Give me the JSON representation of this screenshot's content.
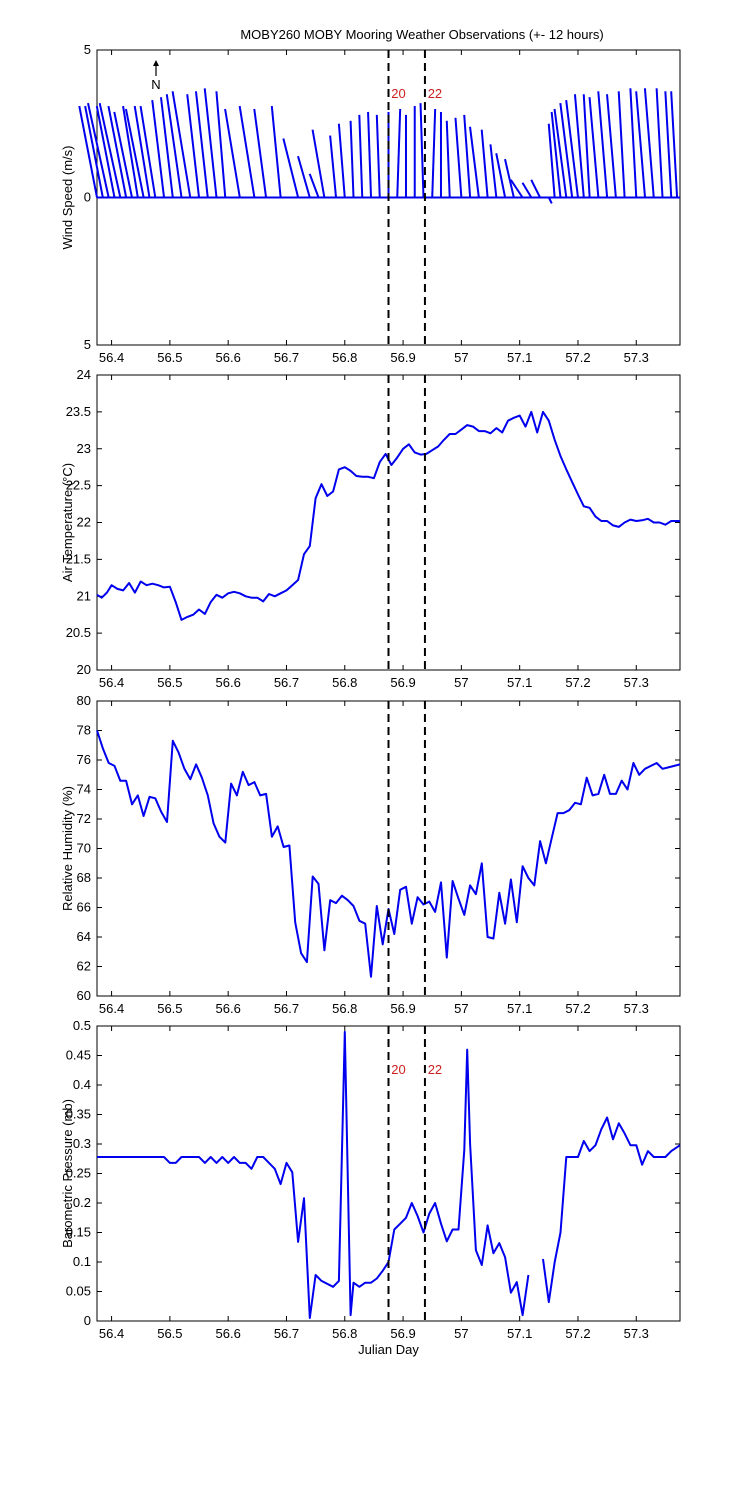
{
  "title": "MOBY260 MOBY Mooring Weather Observations (+- 12 hours)",
  "colors": {
    "line": "#0000ee",
    "marker_text": "#cc1f1f",
    "axes": "#000000"
  },
  "chart_data": [
    {
      "type": "line",
      "variant": "wind-vector-stick",
      "ylabel": "Wind Speed (m/s)",
      "xlim": [
        56.375,
        57.375
      ],
      "ylim": [
        -5,
        5
      ],
      "yticks": [
        "5",
        "0",
        "5"
      ],
      "xticks": [
        "56.4",
        "56.5",
        "56.6",
        "56.7",
        "56.8",
        "56.9",
        "57",
        "57.1",
        "57.2",
        "57.3"
      ],
      "north_label": "N",
      "markers": [
        {
          "x": 56.875,
          "label": "20"
        },
        {
          "x": 56.9375,
          "label": "22"
        }
      ],
      "x": [
        56.375,
        56.385,
        56.395,
        56.405,
        56.415,
        56.425,
        56.435,
        56.445,
        56.455,
        56.465,
        56.475,
        56.49,
        56.505,
        56.52,
        56.535,
        56.55,
        56.565,
        56.58,
        56.595,
        56.62,
        56.645,
        56.665,
        56.69,
        56.72,
        56.74,
        56.755,
        56.765,
        56.785,
        56.8,
        56.815,
        56.83,
        56.845,
        56.86,
        56.875,
        56.89,
        56.905,
        56.92,
        56.935,
        56.95,
        56.965,
        56.98,
        57.0,
        57.015,
        57.03,
        57.045,
        57.06,
        57.075,
        57.09,
        57.105,
        57.12,
        57.135,
        57.15,
        57.16,
        57.17,
        57.18,
        57.19,
        57.2,
        57.21,
        57.22,
        57.235,
        57.25,
        57.265,
        57.28,
        57.3,
        57.315,
        57.33,
        57.345,
        57.36,
        57.37
      ],
      "u": [
        -0.6,
        -0.6,
        -0.7,
        -0.6,
        -0.7,
        -0.6,
        -0.6,
        -0.5,
        -0.6,
        -0.5,
        -0.5,
        -0.4,
        -0.4,
        -0.5,
        -0.6,
        -0.4,
        -0.4,
        -0.4,
        -0.3,
        -0.5,
        -0.5,
        -0.4,
        -0.3,
        -0.5,
        -0.4,
        -0.3,
        -0.4,
        -0.2,
        -0.2,
        -0.1,
        -0.1,
        -0.1,
        -0.1,
        0.0,
        0.1,
        0.0,
        0.0,
        -0.1,
        0.1,
        0.0,
        -0.1,
        -0.2,
        -0.2,
        -0.3,
        -0.2,
        -0.2,
        -0.3,
        -0.3,
        -0.4,
        -0.3,
        -0.3,
        0.1,
        -0.2,
        -0.3,
        -0.4,
        -0.4,
        -0.4,
        -0.3,
        -0.2,
        -0.3,
        -0.3,
        -0.3,
        -0.2,
        -0.2,
        -0.3,
        -0.3,
        -0.2,
        -0.2,
        -0.2
      ],
      "v": [
        3.1,
        3.1,
        3.2,
        3.1,
        3.2,
        3.1,
        2.9,
        3.1,
        3.0,
        3.1,
        3.1,
        3.3,
        3.4,
        3.5,
        3.6,
        3.5,
        3.6,
        3.7,
        3.6,
        3.0,
        3.1,
        3.0,
        3.1,
        2.0,
        1.4,
        0.8,
        2.3,
        2.1,
        2.5,
        2.6,
        2.8,
        2.9,
        2.8,
        2.9,
        3.0,
        2.8,
        3.1,
        3.2,
        3.0,
        2.9,
        2.6,
        2.7,
        2.8,
        2.4,
        2.3,
        1.8,
        1.5,
        1.3,
        0.6,
        0.5,
        0.6,
        -0.2,
        2.5,
        2.9,
        3.0,
        3.2,
        3.3,
        3.5,
        3.5,
        3.4,
        3.6,
        3.5,
        3.6,
        3.7,
        3.6,
        3.7,
        3.7,
        3.6,
        3.6
      ]
    },
    {
      "type": "line",
      "ylabel": "Air Temperature (°C)",
      "xlim": [
        56.375,
        57.375
      ],
      "ylim": [
        20,
        24
      ],
      "yticks": [
        "20",
        "20.5",
        "21",
        "21.5",
        "22",
        "22.5",
        "23",
        "23.5",
        "24"
      ],
      "xticks": [
        "56.4",
        "56.5",
        "56.6",
        "56.7",
        "56.8",
        "56.9",
        "57",
        "57.1",
        "57.2",
        "57.3"
      ],
      "markers": [
        {
          "x": 56.875,
          "label": ""
        },
        {
          "x": 56.9375,
          "label": ""
        }
      ],
      "x": [
        56.375,
        56.383,
        56.392,
        56.4,
        56.41,
        56.42,
        56.43,
        56.44,
        56.45,
        56.46,
        56.47,
        56.48,
        56.49,
        56.5,
        56.51,
        56.52,
        56.53,
        56.54,
        56.55,
        56.56,
        56.57,
        56.58,
        56.59,
        56.6,
        56.61,
        56.62,
        56.63,
        56.64,
        56.65,
        56.66,
        56.67,
        56.68,
        56.69,
        56.7,
        56.71,
        56.72,
        56.73,
        56.74,
        56.75,
        56.76,
        56.77,
        56.78,
        56.79,
        56.8,
        56.81,
        56.82,
        56.83,
        56.84,
        56.85,
        56.86,
        56.87,
        56.88,
        56.89,
        56.9,
        56.91,
        56.92,
        56.93,
        56.94,
        56.95,
        56.96,
        56.97,
        56.98,
        56.99,
        57.0,
        57.01,
        57.02,
        57.03,
        57.04,
        57.05,
        57.06,
        57.07,
        57.08,
        57.09,
        57.1,
        57.11,
        57.12,
        57.13,
        57.14,
        57.15,
        57.16,
        57.17,
        57.18,
        57.19,
        57.2,
        57.21,
        57.22,
        57.23,
        57.24,
        57.25,
        57.26,
        57.27,
        57.28,
        57.29,
        57.3,
        57.31,
        57.32,
        57.33,
        57.34,
        57.35,
        57.36,
        57.375
      ],
      "y": [
        21.02,
        20.98,
        21.05,
        21.15,
        21.1,
        21.08,
        21.18,
        21.05,
        21.2,
        21.15,
        21.17,
        21.15,
        21.12,
        21.13,
        20.92,
        20.68,
        20.72,
        20.75,
        20.82,
        20.76,
        20.92,
        21.02,
        20.98,
        21.04,
        21.06,
        21.04,
        21.0,
        20.98,
        20.98,
        20.93,
        21.03,
        21.0,
        21.04,
        21.08,
        21.15,
        21.22,
        21.57,
        21.68,
        22.33,
        22.52,
        22.36,
        22.42,
        22.72,
        22.75,
        22.7,
        22.63,
        22.62,
        22.62,
        22.6,
        22.82,
        22.93,
        22.78,
        22.88,
        23.0,
        23.06,
        22.95,
        22.92,
        22.93,
        22.98,
        23.03,
        23.12,
        23.2,
        23.2,
        23.26,
        23.32,
        23.3,
        23.24,
        23.24,
        23.21,
        23.28,
        23.22,
        23.38,
        23.42,
        23.45,
        23.3,
        23.5,
        23.22,
        23.5,
        23.38,
        23.12,
        22.9,
        22.72,
        22.55,
        22.38,
        22.22,
        22.2,
        22.08,
        22.02,
        22.02,
        21.96,
        21.94,
        22.0,
        22.04,
        22.02,
        22.03,
        22.05,
        22.0,
        22.0,
        21.97,
        22.02,
        22.02
      ]
    },
    {
      "type": "line",
      "ylabel": "Relative Humidity (%)",
      "xlim": [
        56.375,
        57.375
      ],
      "ylim": [
        60,
        80
      ],
      "yticks": [
        "60",
        "62",
        "64",
        "66",
        "68",
        "70",
        "72",
        "74",
        "76",
        "78",
        "80"
      ],
      "xticks": [
        "56.4",
        "56.5",
        "56.6",
        "56.7",
        "56.8",
        "56.9",
        "57",
        "57.1",
        "57.2",
        "57.3"
      ],
      "markers": [
        {
          "x": 56.875,
          "label": ""
        },
        {
          "x": 56.9375,
          "label": ""
        }
      ],
      "x": [
        56.375,
        56.385,
        56.395,
        56.405,
        56.415,
        56.425,
        56.435,
        56.445,
        56.455,
        56.465,
        56.475,
        56.485,
        56.495,
        56.505,
        56.515,
        56.525,
        56.535,
        56.545,
        56.555,
        56.565,
        56.575,
        56.585,
        56.595,
        56.605,
        56.615,
        56.625,
        56.635,
        56.645,
        56.655,
        56.665,
        56.675,
        56.685,
        56.695,
        56.705,
        56.715,
        56.725,
        56.735,
        56.745,
        56.755,
        56.765,
        56.775,
        56.785,
        56.795,
        56.805,
        56.815,
        56.825,
        56.835,
        56.845,
        56.855,
        56.865,
        56.875,
        56.885,
        56.895,
        56.905,
        56.915,
        56.925,
        56.935,
        56.945,
        56.955,
        56.965,
        56.975,
        56.985,
        56.995,
        57.005,
        57.015,
        57.025,
        57.035,
        57.045,
        57.055,
        57.065,
        57.075,
        57.085,
        57.095,
        57.105,
        57.115,
        57.125,
        57.135,
        57.145,
        57.155,
        57.165,
        57.175,
        57.185,
        57.195,
        57.205,
        57.215,
        57.225,
        57.235,
        57.245,
        57.255,
        57.265,
        57.275,
        57.285,
        57.295,
        57.305,
        57.315,
        57.325,
        57.335,
        57.345,
        57.355,
        57.365,
        57.375
      ],
      "y": [
        78.0,
        76.8,
        75.8,
        75.6,
        74.6,
        74.6,
        73.0,
        73.6,
        72.2,
        73.5,
        73.4,
        72.5,
        71.8,
        77.3,
        76.5,
        75.4,
        74.7,
        75.7,
        74.8,
        73.6,
        71.7,
        70.8,
        70.4,
        74.4,
        73.6,
        75.2,
        74.3,
        74.5,
        73.6,
        73.7,
        70.8,
        71.5,
        70.1,
        70.2,
        65.0,
        62.9,
        62.3,
        68.1,
        67.6,
        63.1,
        66.5,
        66.3,
        66.8,
        66.5,
        66.1,
        65.1,
        64.9,
        61.3,
        66.1,
        63.5,
        65.9,
        64.2,
        67.2,
        67.4,
        64.9,
        66.7,
        66.2,
        66.4,
        65.7,
        67.7,
        62.6,
        67.8,
        66.6,
        65.5,
        67.5,
        66.9,
        69.0,
        64.0,
        63.9,
        67.0,
        64.9,
        67.9,
        65.0,
        68.8,
        68.0,
        67.5,
        70.5,
        69.0,
        70.7,
        72.4,
        72.4,
        72.6,
        73.1,
        73.0,
        74.8,
        73.6,
        73.7,
        75.0,
        73.7,
        73.7,
        74.6,
        74.0,
        75.8,
        75.0,
        75.4,
        75.6,
        75.8,
        75.4,
        75.5,
        75.6,
        75.7
      ]
    },
    {
      "type": "line",
      "ylabel": "Barometric Pressure (mb)",
      "xlabel": "Julian Day",
      "xlim": [
        56.375,
        57.375
      ],
      "ylim": [
        0,
        0.5
      ],
      "yticks": [
        "0",
        "0.05",
        "0.1",
        "0.15",
        "0.2",
        "0.25",
        "0.3",
        "0.35",
        "0.4",
        "0.45",
        "0.5"
      ],
      "xticks": [
        "56.4",
        "56.5",
        "56.6",
        "56.7",
        "56.8",
        "56.9",
        "57",
        "57.1",
        "57.2",
        "57.3"
      ],
      "markers": [
        {
          "x": 56.875,
          "label": "20"
        },
        {
          "x": 56.9375,
          "label": "22"
        }
      ],
      "x": [
        56.375,
        56.39,
        56.41,
        56.43,
        56.45,
        56.47,
        56.49,
        56.5,
        56.51,
        56.52,
        56.535,
        56.55,
        56.56,
        56.57,
        56.58,
        56.59,
        56.6,
        56.61,
        56.62,
        56.63,
        56.64,
        56.65,
        56.66,
        56.67,
        56.68,
        56.69,
        56.7,
        56.71,
        56.72,
        56.73,
        56.74,
        56.75,
        56.76,
        56.78,
        56.79,
        56.8,
        56.805,
        56.81,
        56.815,
        56.825,
        56.835,
        56.845,
        56.855,
        56.865,
        56.875,
        56.885,
        56.895,
        56.905,
        56.915,
        56.925,
        56.935,
        56.945,
        56.955,
        56.965,
        56.975,
        56.985,
        56.995,
        57.005,
        57.01,
        57.015,
        57.025,
        57.035,
        57.045,
        57.055,
        57.065,
        57.075,
        57.085,
        57.095,
        57.105,
        57.115,
        57.13,
        57.14,
        57.15,
        57.16,
        57.17,
        57.18,
        57.19,
        57.2,
        57.21,
        57.22,
        57.23,
        57.24,
        57.25,
        57.26,
        57.27,
        57.28,
        57.29,
        57.3,
        57.31,
        57.32,
        57.33,
        57.34,
        57.35,
        57.36,
        57.375
      ],
      "y": [
        0.278,
        0.278,
        0.278,
        0.278,
        0.278,
        0.278,
        0.278,
        0.268,
        0.268,
        0.278,
        0.278,
        0.278,
        0.268,
        0.278,
        0.268,
        0.278,
        0.268,
        0.278,
        0.268,
        0.268,
        0.258,
        0.278,
        0.278,
        0.268,
        0.258,
        0.232,
        0.268,
        0.252,
        0.134,
        0.208,
        0.005,
        0.078,
        0.068,
        0.058,
        0.068,
        0.49,
        0.25,
        0.01,
        0.065,
        0.058,
        0.065,
        0.065,
        0.072,
        0.085,
        0.1,
        0.155,
        0.165,
        0.175,
        0.2,
        0.178,
        0.15,
        0.182,
        0.2,
        0.165,
        0.135,
        0.155,
        0.155,
        0.29,
        0.46,
        0.3,
        0.12,
        0.095,
        0.162,
        0.115,
        0.132,
        0.108,
        0.048,
        0.066,
        0.01,
        0.078,
        null,
        0.105,
        0.032,
        0.1,
        0.15,
        0.278,
        0.278,
        0.278,
        0.305,
        0.288,
        0.298,
        0.325,
        0.345,
        0.308,
        0.335,
        0.318,
        0.298,
        0.298,
        0.265,
        0.288,
        0.278,
        0.278,
        0.278,
        0.288,
        0.298
      ]
    }
  ]
}
